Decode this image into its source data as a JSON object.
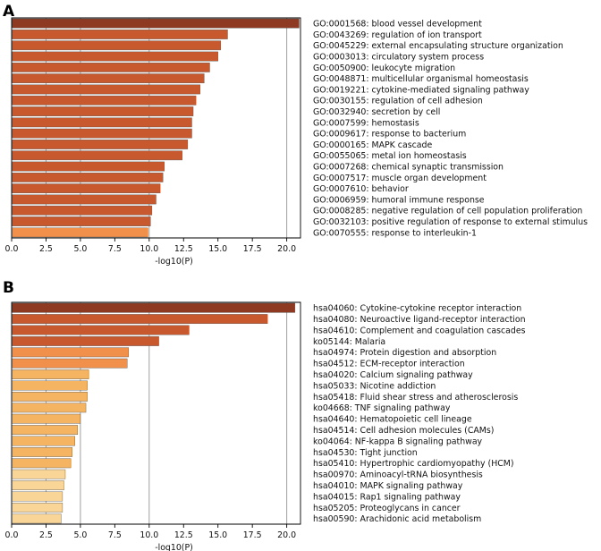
{
  "chart_data": [
    {
      "type": "bar",
      "orientation": "horizontal",
      "panel_label": "A",
      "xlabel": "-log10(P)",
      "xlim": [
        0,
        21
      ],
      "xticks": [
        "0.0",
        "2.5",
        "5.0",
        "7.5",
        "10.0",
        "12.5",
        "15.0",
        "17.5",
        "20.0"
      ],
      "grid": "vertical at 2.5, 5, 10, 20",
      "categories": [
        "GO:0001568: blood vessel development",
        "GO:0043269: regulation of ion transport",
        "GO:0045229: external encapsulating structure organization",
        "GO:0003013: circulatory system process",
        "GO:0050900: leukocyte migration",
        "GO:0048871: multicellular organismal homeostasis",
        "GO:0019221: cytokine-mediated signaling pathway",
        "GO:0030155: regulation of cell adhesion",
        "GO:0032940: secretion by cell",
        "GO:0007599: hemostasis",
        "GO:0009617: response to bacterium",
        "GO:0000165: MAPK cascade",
        "GO:0055065: metal ion homeostasis",
        "GO:0007268: chemical synaptic transmission",
        "GO:0007517: muscle organ development",
        "GO:0007610: behavior",
        "GO:0006959: humoral immune response",
        "GO:0008285: negative regulation of cell population proliferation",
        "GO:0032103: positive regulation of response to external stimulus",
        "GO:0070555: response to interleukin-1"
      ],
      "values": [
        20.9,
        15.7,
        15.2,
        15.0,
        14.4,
        14.0,
        13.7,
        13.4,
        13.2,
        13.1,
        13.1,
        12.8,
        12.4,
        11.1,
        11.0,
        10.8,
        10.5,
        10.2,
        10.1,
        9.9
      ],
      "colors": [
        "#8e3a22",
        "#c8582d",
        "#c8582d",
        "#c8582d",
        "#c8582d",
        "#c8582d",
        "#c8582d",
        "#c8582d",
        "#c8582d",
        "#c8582d",
        "#c8582d",
        "#c8582d",
        "#c8582d",
        "#c8582d",
        "#c8582d",
        "#c8582d",
        "#c8582d",
        "#c8582d",
        "#c8582d",
        "#f0904a"
      ]
    },
    {
      "type": "bar",
      "orientation": "horizontal",
      "panel_label": "B",
      "xlabel": "-log10(P)",
      "xlim": [
        0,
        21
      ],
      "xticks": [
        "0.0",
        "2.5",
        "5.0",
        "7.5",
        "10.0",
        "12.5",
        "15.0",
        "17.5",
        "20.0"
      ],
      "grid": "vertical at 2.5, 5, 10, 20",
      "categories": [
        "hsa04060: Cytokine-cytokine receptor interaction",
        "hsa04080: Neuroactive ligand-receptor interaction",
        "hsa04610: Complement and coagulation cascades",
        "ko05144: Malaria",
        "hsa04974: Protein digestion and absorption",
        "hsa04512: ECM-receptor interaction",
        "hsa04020: Calcium signaling pathway",
        "hsa05033: Nicotine addiction",
        "hsa05418: Fluid shear stress and atherosclerosis",
        "ko04668: TNF signaling pathway",
        "hsa04640: Hematopoietic cell lineage",
        "hsa04514: Cell adhesion molecules (CAMs)",
        "ko04064: NF-kappa B signaling pathway",
        "hsa04530: Tight junction",
        "hsa05410: Hypertrophic cardiomyopathy (HCM)",
        "hsa00970: Aminoacyl-tRNA biosynthesis",
        "hsa04010: MAPK signaling pathway",
        "hsa04015: Rap1 signaling pathway",
        "hsa05205: Proteoglycans in cancer",
        "hsa00590: Arachidonic acid metabolism"
      ],
      "values": [
        20.6,
        18.6,
        12.9,
        10.7,
        8.5,
        8.4,
        5.6,
        5.5,
        5.5,
        5.4,
        5.0,
        4.8,
        4.6,
        4.4,
        4.3,
        3.9,
        3.8,
        3.7,
        3.7,
        3.6
      ],
      "colors": [
        "#8e3a22",
        "#c8582d",
        "#c8582d",
        "#c8582d",
        "#f0904a",
        "#f0904a",
        "#f5b462",
        "#f5b462",
        "#f5b462",
        "#f5b462",
        "#f5b462",
        "#f5b462",
        "#f5b462",
        "#f5b462",
        "#f5b462",
        "#f9d597",
        "#f9d597",
        "#f9d597",
        "#f9d597",
        "#f9d597"
      ]
    }
  ]
}
